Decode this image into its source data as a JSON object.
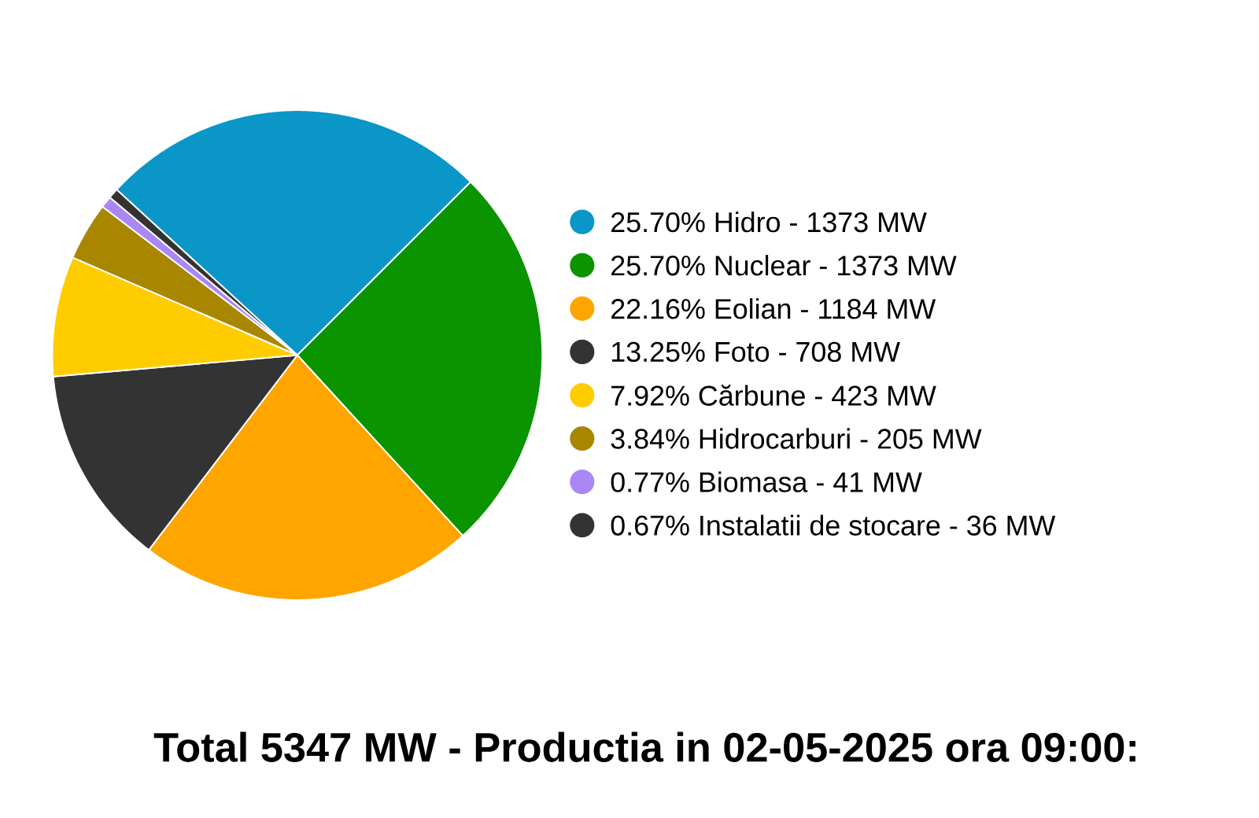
{
  "chart_data": {
    "type": "pie",
    "title": "Total 5347 MW - Productia in 02-05-2025 ora 09:00:",
    "categories": [
      "25.70% Hidro - 1373 MW",
      "25.70% Nuclear - 1373 MW",
      "22.16% Eolian - 1184 MW",
      "13.25% Foto - 708 MW",
      "7.92% Cărbune - 423 MW",
      "3.84% Hidrocarburi - 205 MW",
      "0.77% Biomasa - 41 MW",
      "0.67% Instalatii de stocare - 36 MW"
    ],
    "values": [
      25.7,
      25.7,
      22.16,
      13.25,
      7.92,
      3.84,
      0.77,
      0.67
    ],
    "colors": [
      "#0b96c8",
      "#0a9400",
      "#ffa500",
      "#333333",
      "#ffcc00",
      "#a88600",
      "#a987f5",
      "#333333"
    ],
    "legend": "right"
  }
}
